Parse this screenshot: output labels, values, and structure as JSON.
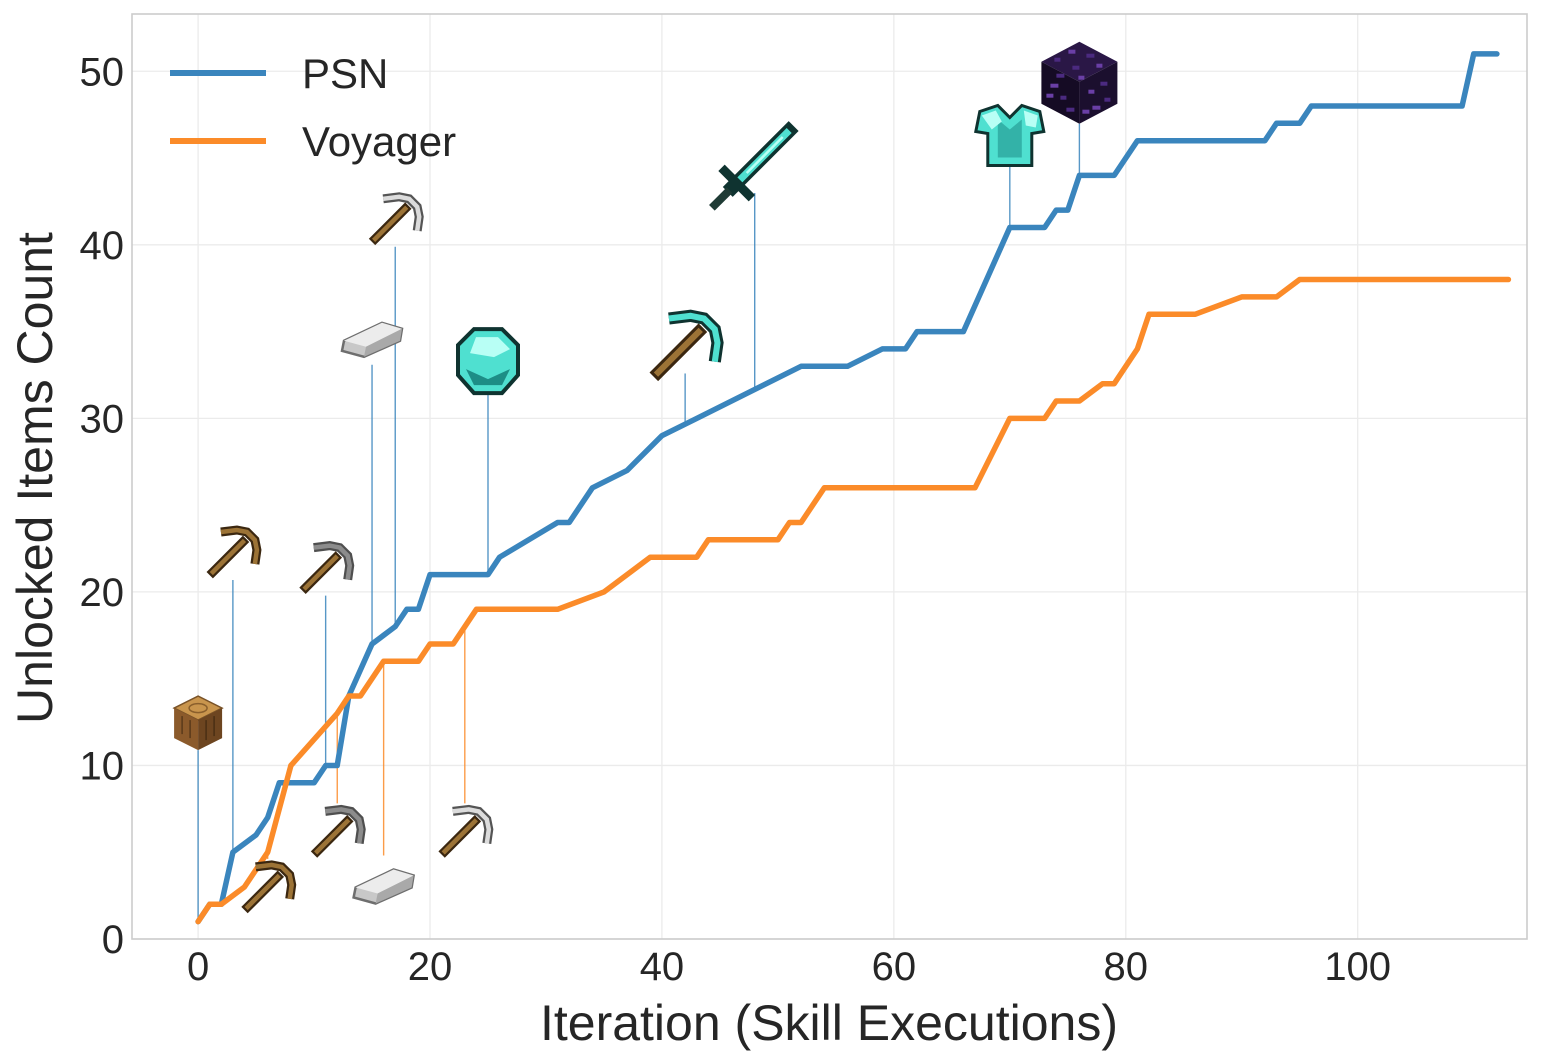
{
  "chart_data": {
    "type": "line",
    "xlabel": "Iteration (Skill Executions)",
    "ylabel": "Unlocked Items Count",
    "xlim": [
      -5.7,
      114.6
    ],
    "ylim": [
      0,
      53.3
    ],
    "xticks": [
      0,
      20,
      40,
      60,
      80,
      100
    ],
    "yticks": [
      0,
      10,
      20,
      30,
      40,
      50
    ],
    "grid": true,
    "legend_position": "top-left",
    "series": [
      {
        "name": "PSN",
        "color": "#3a85bd",
        "points": [
          [
            0,
            1
          ],
          [
            1,
            2
          ],
          [
            2,
            2
          ],
          [
            3,
            5
          ],
          [
            5,
            6
          ],
          [
            6,
            7
          ],
          [
            7,
            9
          ],
          [
            10,
            9
          ],
          [
            11,
            10
          ],
          [
            12,
            10
          ],
          [
            13,
            14
          ],
          [
            15,
            17
          ],
          [
            17,
            18
          ],
          [
            18,
            19
          ],
          [
            19,
            19
          ],
          [
            20,
            21
          ],
          [
            25,
            21
          ],
          [
            26,
            22
          ],
          [
            31,
            24
          ],
          [
            32,
            24
          ],
          [
            34,
            26
          ],
          [
            37,
            27
          ],
          [
            40,
            29
          ],
          [
            43,
            30
          ],
          [
            52,
            33
          ],
          [
            56,
            33
          ],
          [
            59,
            34
          ],
          [
            61,
            34
          ],
          [
            62,
            35
          ],
          [
            66,
            35
          ],
          [
            70,
            41
          ],
          [
            73,
            41
          ],
          [
            74,
            42
          ],
          [
            75,
            42
          ],
          [
            76,
            44
          ],
          [
            79,
            44
          ],
          [
            81,
            46
          ],
          [
            92,
            46
          ],
          [
            93,
            47
          ],
          [
            95,
            47
          ],
          [
            96,
            48
          ],
          [
            109,
            48
          ],
          [
            110,
            51
          ],
          [
            112,
            51
          ]
        ]
      },
      {
        "name": "Voyager",
        "color": "#fb8b29",
        "points": [
          [
            0,
            1
          ],
          [
            1,
            2
          ],
          [
            2,
            2
          ],
          [
            4,
            3
          ],
          [
            6,
            5
          ],
          [
            8,
            10
          ],
          [
            12,
            13
          ],
          [
            13,
            14
          ],
          [
            14,
            14
          ],
          [
            16,
            16
          ],
          [
            19,
            16
          ],
          [
            20,
            17
          ],
          [
            22,
            17
          ],
          [
            24,
            19
          ],
          [
            31,
            19
          ],
          [
            35,
            20
          ],
          [
            39,
            22
          ],
          [
            43,
            22
          ],
          [
            44,
            23
          ],
          [
            50,
            23
          ],
          [
            51,
            24
          ],
          [
            52,
            24
          ],
          [
            54,
            26
          ],
          [
            67,
            26
          ],
          [
            70,
            30
          ],
          [
            73,
            30
          ],
          [
            74,
            31
          ],
          [
            76,
            31
          ],
          [
            78,
            32
          ],
          [
            79,
            32
          ],
          [
            81,
            34
          ],
          [
            82,
            36
          ],
          [
            86,
            36
          ],
          [
            90,
            37
          ],
          [
            93,
            37
          ],
          [
            95,
            38
          ],
          [
            113,
            38
          ]
        ]
      }
    ],
    "annotations": [
      {
        "item": "log-icon",
        "series": "PSN",
        "x": 0,
        "y": 1,
        "icon_y": 12.5
      },
      {
        "item": "wooden-pickaxe-icon",
        "series": "PSN",
        "x": 3,
        "y": 5,
        "icon_y": 22.3
      },
      {
        "item": "stone-pickaxe-icon",
        "series": "PSN",
        "x": 11,
        "y": 10,
        "icon_y": 21.4
      },
      {
        "item": "iron-ingot-icon",
        "series": "PSN",
        "x": 15,
        "y": 17,
        "icon_y": 34.7
      },
      {
        "item": "iron-pickaxe-icon",
        "series": "PSN",
        "x": 17,
        "y": 18,
        "icon_y": 41.5
      },
      {
        "item": "diamond-icon",
        "series": "PSN",
        "x": 25,
        "y": 21,
        "icon_y": 33.3
      },
      {
        "item": "diamond-pickaxe-icon",
        "series": "PSN",
        "x": 42,
        "y": 29.7,
        "icon_y": 34.2
      },
      {
        "item": "diamond-sword-icon",
        "series": "PSN",
        "x": 48,
        "y": 31.7,
        "icon_y": 44.6
      },
      {
        "item": "diamond-chestplate-icon",
        "series": "PSN",
        "x": 70,
        "y": 41,
        "icon_y": 46.3
      },
      {
        "item": "obsidian-icon",
        "series": "PSN",
        "x": 76,
        "y": 44,
        "icon_y": 49.4
      },
      {
        "item": "wooden-pickaxe-icon",
        "series": "Voyager",
        "x": 6,
        "y": 5,
        "icon_y": 3.0
      },
      {
        "item": "stone-pickaxe-icon",
        "series": "Voyager",
        "x": 12,
        "y": 13,
        "icon_y": 6.2
      },
      {
        "item": "iron-ingot-icon",
        "series": "Voyager",
        "x": 16,
        "y": 16,
        "icon_y": 3.2
      },
      {
        "item": "iron-pickaxe-icon",
        "series": "Voyager",
        "x": 23,
        "y": 18,
        "icon_y": 6.2
      }
    ]
  }
}
